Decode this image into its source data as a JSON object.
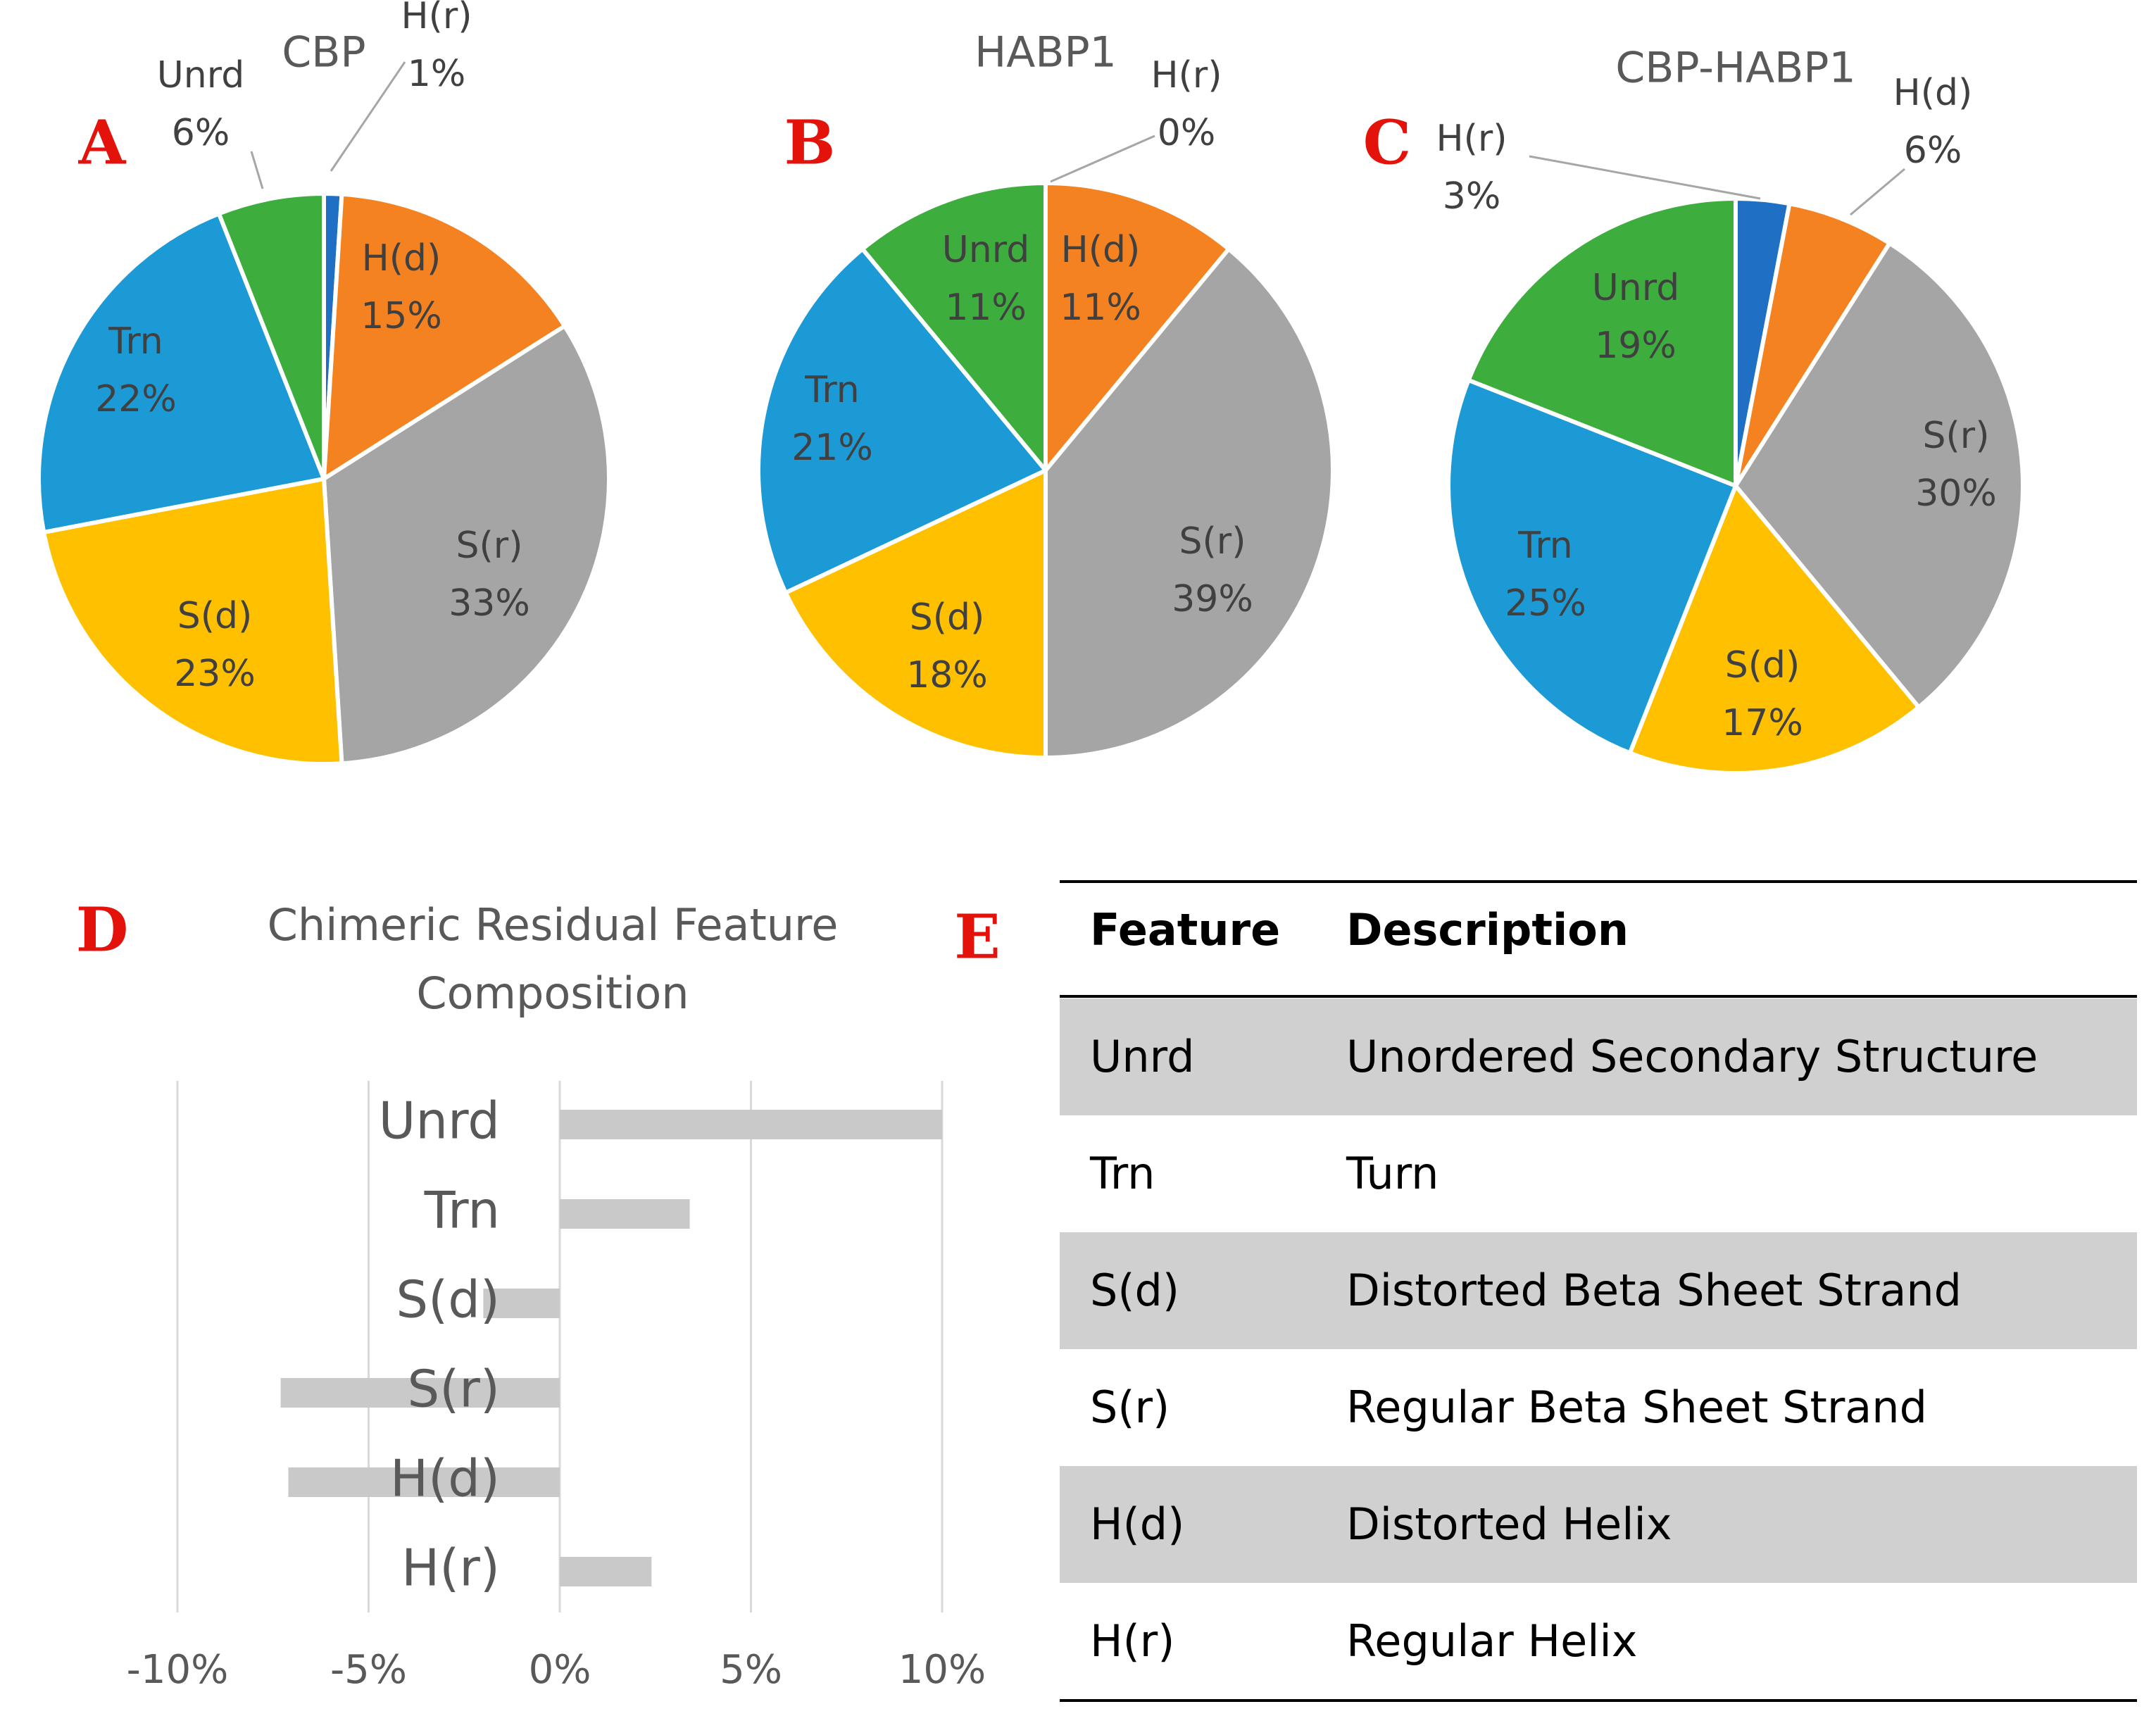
{
  "colors": {
    "H(r)": "#1f6fc5",
    "H(d)": "#f58220",
    "S(r)": "#a5a5a5",
    "S(d)": "#ffc000",
    "Trn": "#1b9ad6",
    "Unrd": "#3dae3d",
    "bar": "#c9c9c9",
    "panel_letter": "#e3120b",
    "table_shade": "#d0d0d0"
  },
  "chart_data": [
    {
      "type": "pie",
      "panel": "A",
      "title": "CBP",
      "slices": [
        {
          "label": "H(r)",
          "value": 1,
          "text": "1%"
        },
        {
          "label": "H(d)",
          "value": 15,
          "text": "15%"
        },
        {
          "label": "S(r)",
          "value": 33,
          "text": "33%"
        },
        {
          "label": "S(d)",
          "value": 23,
          "text": "23%"
        },
        {
          "label": "Trn",
          "value": 22,
          "text": "22%"
        },
        {
          "label": "Unrd",
          "value": 6,
          "text": "6%"
        }
      ]
    },
    {
      "type": "pie",
      "panel": "B",
      "title": "HABP1",
      "slices": [
        {
          "label": "H(r)",
          "value": 0,
          "text": "0%"
        },
        {
          "label": "H(d)",
          "value": 11,
          "text": "11%"
        },
        {
          "label": "S(r)",
          "value": 39,
          "text": "39%"
        },
        {
          "label": "S(d)",
          "value": 18,
          "text": "18%"
        },
        {
          "label": "Trn",
          "value": 21,
          "text": "21%"
        },
        {
          "label": "Unrd",
          "value": 11,
          "text": "11%"
        }
      ]
    },
    {
      "type": "pie",
      "panel": "C",
      "title": "CBP-HABP1",
      "slices": [
        {
          "label": "H(r)",
          "value": 3,
          "text": "3%"
        },
        {
          "label": "H(d)",
          "value": 6,
          "text": "6%"
        },
        {
          "label": "S(r)",
          "value": 30,
          "text": "30%"
        },
        {
          "label": "S(d)",
          "value": 17,
          "text": "17%"
        },
        {
          "label": "Trn",
          "value": 25,
          "text": "25%"
        },
        {
          "label": "Unrd",
          "value": 19,
          "text": "19%"
        }
      ]
    },
    {
      "type": "bar",
      "orientation": "horizontal",
      "panel": "D",
      "title": [
        "Chimeric Residual Feature",
        "Composition"
      ],
      "categories": [
        "Unrd",
        "Trn",
        "S(d)",
        "S(r)",
        "H(d)",
        "H(r)"
      ],
      "values": [
        10,
        3.4,
        -2,
        -7.3,
        -7.1,
        2.4
      ],
      "xlim": [
        -10,
        10
      ],
      "ticks": [
        -10,
        -5,
        0,
        5,
        10
      ],
      "tick_labels": [
        "-10%",
        "-5%",
        "0%",
        "5%",
        "10%"
      ],
      "grid": true
    },
    {
      "type": "table",
      "panel": "E",
      "headers": [
        "Feature",
        "Description"
      ],
      "rows": [
        [
          "Unrd",
          "Unordered Secondary Structure"
        ],
        [
          "Trn",
          "Turn"
        ],
        [
          "S(d)",
          "Distorted Beta Sheet Strand"
        ],
        [
          "S(r)",
          "Regular Beta Sheet Strand"
        ],
        [
          "H(d)",
          "Distorted Helix"
        ],
        [
          "H(r)",
          "Regular Helix"
        ]
      ]
    }
  ]
}
